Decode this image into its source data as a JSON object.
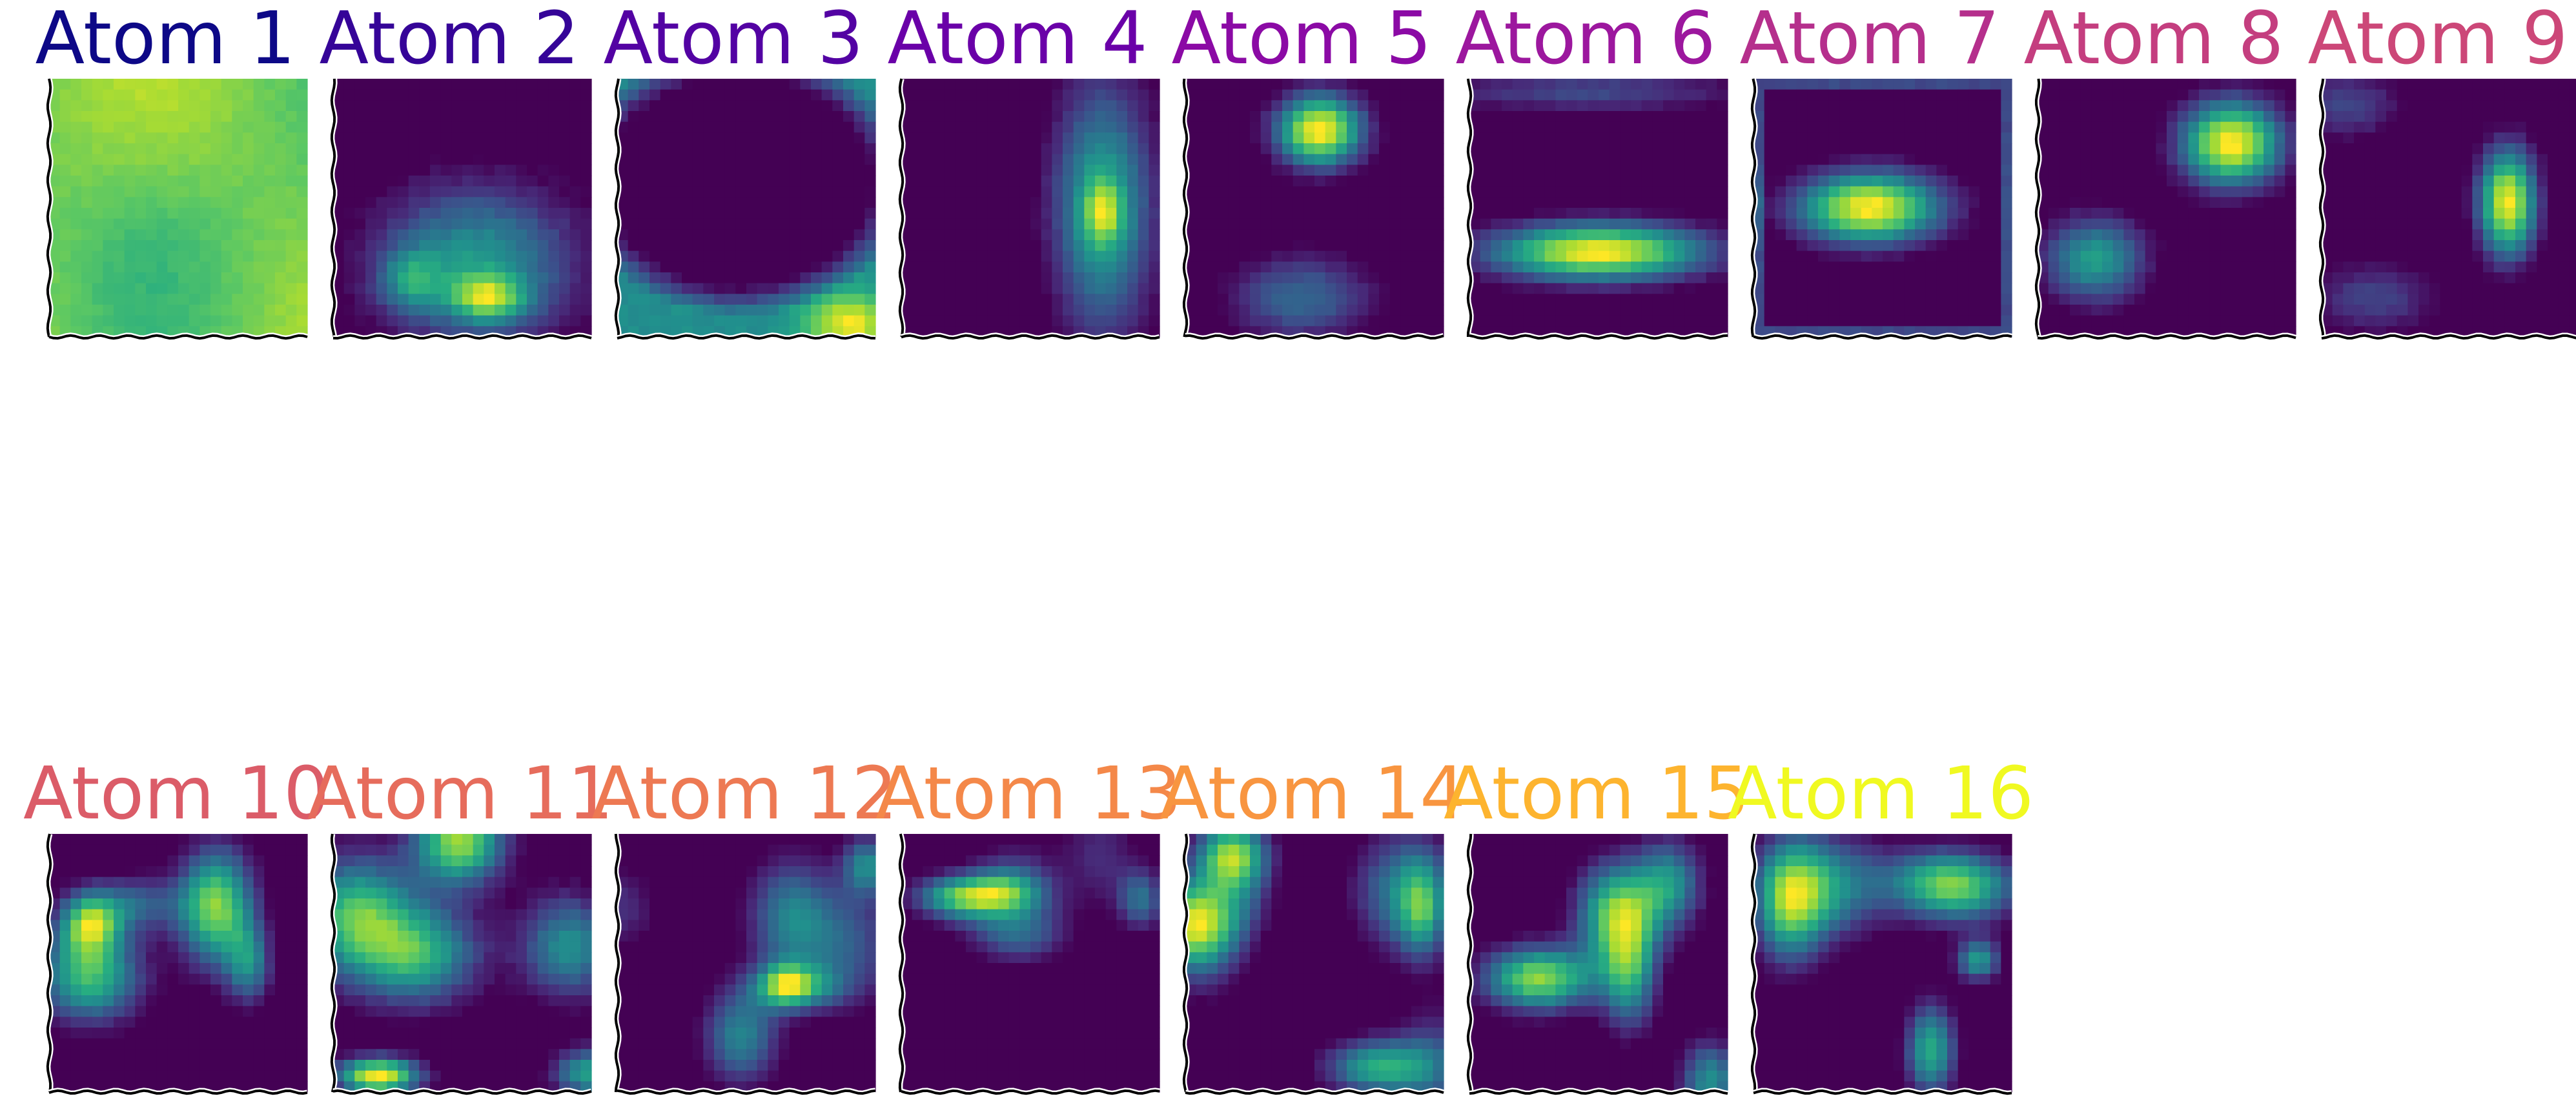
{
  "figure": {
    "background": "#ffffff",
    "colormap": "viridis",
    "edge_style": "xkcd-wiggly black spines on left and bottom"
  },
  "chart_data": [
    {
      "type": "heatmap",
      "title": "Atom 1",
      "title_color": "#0d0887",
      "pattern": "uniform-high"
    },
    {
      "type": "heatmap",
      "title": "Atom 2",
      "title_color": "#350498",
      "pattern": "blob-bottom-center"
    },
    {
      "type": "heatmap",
      "title": "Atom 3",
      "title_color": "#5302a3",
      "pattern": "ring-dark-center"
    },
    {
      "type": "heatmap",
      "title": "Atom 4",
      "title_color": "#6a00a8",
      "pattern": "stripe-right"
    },
    {
      "type": "heatmap",
      "title": "Atom 5",
      "title_color": "#8b0aa5",
      "pattern": "spot-top-center"
    },
    {
      "type": "heatmap",
      "title": "Atom 6",
      "title_color": "#9c179e",
      "pattern": "bar-lower-middle"
    },
    {
      "type": "heatmap",
      "title": "Atom 7",
      "title_color": "#b52f8c",
      "pattern": "ellipse-center"
    },
    {
      "type": "heatmap",
      "title": "Atom 8",
      "title_color": "#c43e7f",
      "pattern": "two-spots"
    },
    {
      "type": "heatmap",
      "title": "Atom 9",
      "title_color": "#cc4778",
      "pattern": "spot-right"
    },
    {
      "type": "heatmap",
      "title": "Atom 10",
      "title_color": "#db5c68",
      "pattern": "multi-blob"
    },
    {
      "type": "heatmap",
      "title": "Atom 11",
      "title_color": "#e66c5c",
      "pattern": "multi-blob"
    },
    {
      "type": "heatmap",
      "title": "Atom 12",
      "title_color": "#ed7953",
      "pattern": "multi-blob"
    },
    {
      "type": "heatmap",
      "title": "Atom 13",
      "title_color": "#f48849",
      "pattern": "multi-blob"
    },
    {
      "type": "heatmap",
      "title": "Atom 14",
      "title_color": "#f89540",
      "pattern": "multi-blob"
    },
    {
      "type": "heatmap",
      "title": "Atom 15",
      "title_color": "#fdb42f",
      "pattern": "multi-blob"
    },
    {
      "type": "heatmap",
      "title": "Atom 16",
      "title_color": "#f0f921",
      "pattern": "multi-blob"
    }
  ]
}
